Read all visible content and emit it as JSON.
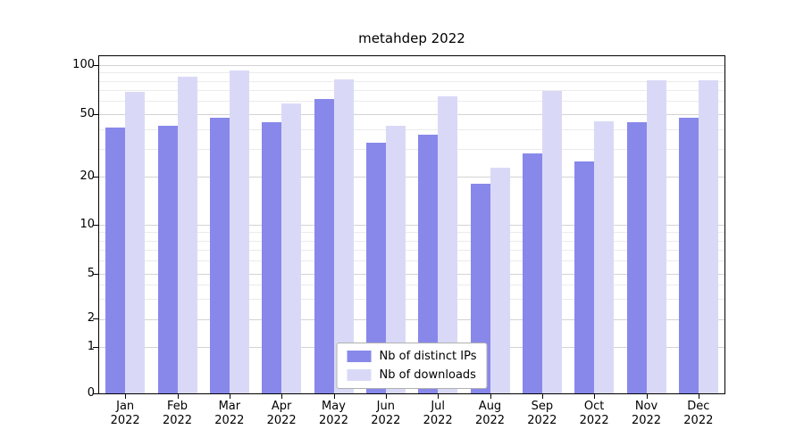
{
  "chart_data": {
    "type": "bar",
    "title": "metahdep 2022",
    "xlabel": "",
    "ylabel": "",
    "categories": [
      "Jan 2022",
      "Feb 2022",
      "Mar 2022",
      "Apr 2022",
      "May 2022",
      "Jun 2022",
      "Jul 2022",
      "Aug 2022",
      "Sep 2022",
      "Oct 2022",
      "Nov 2022",
      "Dec 2022"
    ],
    "series": [
      {
        "name": "Nb of distinct IPs",
        "color": "#8888eb",
        "values": [
          41,
          42,
          47,
          44,
          62,
          33,
          37,
          18,
          28,
          25,
          44,
          47
        ]
      },
      {
        "name": "Nb of downloads",
        "color": "#d9d9f7",
        "values": [
          68,
          85,
          93,
          58,
          81,
          42,
          64,
          23,
          69,
          45,
          80,
          80
        ]
      }
    ],
    "yticks": [
      0,
      1,
      2,
      5,
      10,
      20,
      50,
      100
    ],
    "ylim": [
      0,
      100
    ],
    "yscale": "log-like (0, 1, 2, 5, 10, 20, 50, 100)",
    "grid": true,
    "legend_position": "lower center"
  }
}
